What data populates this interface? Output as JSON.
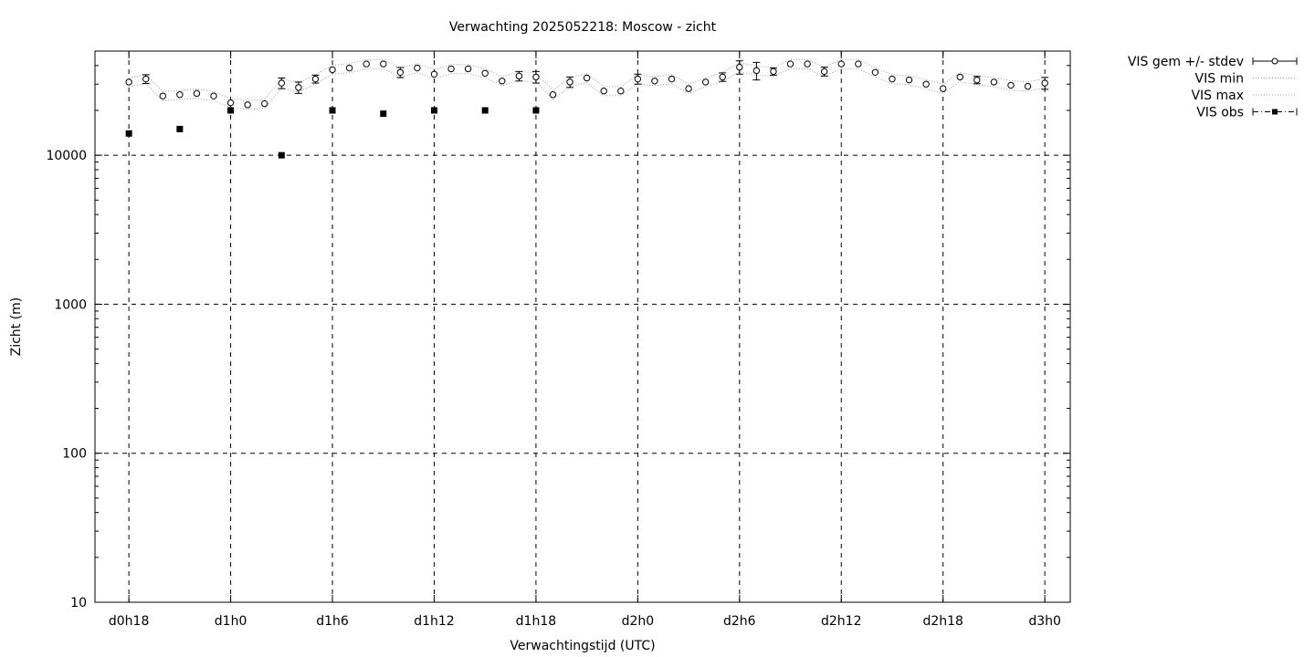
{
  "chart_data": {
    "type": "scatter",
    "title": "Verwachting 2025052218: Moscow - zicht",
    "xlabel": "Verwachtingstijd (UTC)",
    "ylabel": "Zicht (m)",
    "yscale": "log",
    "ylim": [
      10,
      50000
    ],
    "xlim_hours": [
      -2,
      55.5
    ],
    "grid": true,
    "legend_position": "outside-right",
    "x_ticks": [
      {
        "label": "d0h18",
        "hour": 0
      },
      {
        "label": "d1h0",
        "hour": 6
      },
      {
        "label": "d1h6",
        "hour": 12
      },
      {
        "label": "d1h12",
        "hour": 18
      },
      {
        "label": "d1h18",
        "hour": 24
      },
      {
        "label": "d2h0",
        "hour": 30
      },
      {
        "label": "d2h6",
        "hour": 36
      },
      {
        "label": "d2h12",
        "hour": 42
      },
      {
        "label": "d2h18",
        "hour": 48
      },
      {
        "label": "d3h0",
        "hour": 54
      }
    ],
    "y_ticks": [
      {
        "label": "10",
        "value": 10
      },
      {
        "label": "100",
        "value": 100
      },
      {
        "label": "1000",
        "value": 1000
      },
      {
        "label": "10000",
        "value": 10000
      }
    ],
    "legend": [
      {
        "label": "VIS gem +/- stdev",
        "style": "errorbar-circle"
      },
      {
        "label": "VIS min",
        "style": "dotted"
      },
      {
        "label": "VIS max",
        "style": "dotted"
      },
      {
        "label": "VIS obs",
        "style": "square-dashdot"
      }
    ],
    "series": [
      {
        "name": "VIS gem +/- stdev",
        "x_hours": [
          0,
          1,
          2,
          3,
          4,
          5,
          6,
          7,
          8,
          9,
          10,
          11,
          12,
          13,
          14,
          15,
          16,
          17,
          18,
          19,
          20,
          21,
          22,
          23,
          24,
          25,
          26,
          27,
          28,
          29,
          30,
          31,
          32,
          33,
          34,
          35,
          36,
          37,
          38,
          39,
          40,
          41,
          42,
          43,
          44,
          45,
          46,
          47,
          48,
          49,
          50,
          51,
          52,
          53,
          54
        ],
        "values": [
          31000,
          32500,
          25000,
          25500,
          26000,
          25000,
          22500,
          21800,
          22200,
          30500,
          28500,
          32500,
          37500,
          38500,
          41000,
          41000,
          36000,
          38500,
          35000,
          38000,
          38000,
          35500,
          31500,
          34000,
          33500,
          25500,
          31000,
          33000,
          27000,
          27000,
          32500,
          31500,
          32500,
          28000,
          31000,
          33500,
          39000,
          37000,
          36500,
          41000,
          41000,
          36500,
          41000,
          41000,
          36000,
          32500,
          32000,
          30000,
          28000,
          33500,
          32000,
          31000,
          29500,
          29000,
          30500
        ],
        "stdev": [
          0,
          2200,
          0,
          0,
          0,
          0,
          0,
          0,
          0,
          2500,
          2500,
          2000,
          0,
          0,
          0,
          0,
          2800,
          0,
          0,
          0,
          0,
          0,
          0,
          2500,
          3000,
          0,
          2500,
          0,
          0,
          0,
          2500,
          0,
          0,
          0,
          0,
          2200,
          4000,
          5000,
          2000,
          0,
          0,
          2500,
          0,
          0,
          0,
          0,
          0,
          0,
          0,
          0,
          1800,
          0,
          0,
          0,
          2800
        ]
      },
      {
        "name": "VIS obs",
        "x_hours": [
          0,
          3,
          6,
          9,
          12,
          15,
          18,
          21,
          24
        ],
        "values": [
          14000,
          15000,
          20000,
          10000,
          20000,
          19000,
          20000,
          20000,
          20000
        ]
      }
    ]
  }
}
